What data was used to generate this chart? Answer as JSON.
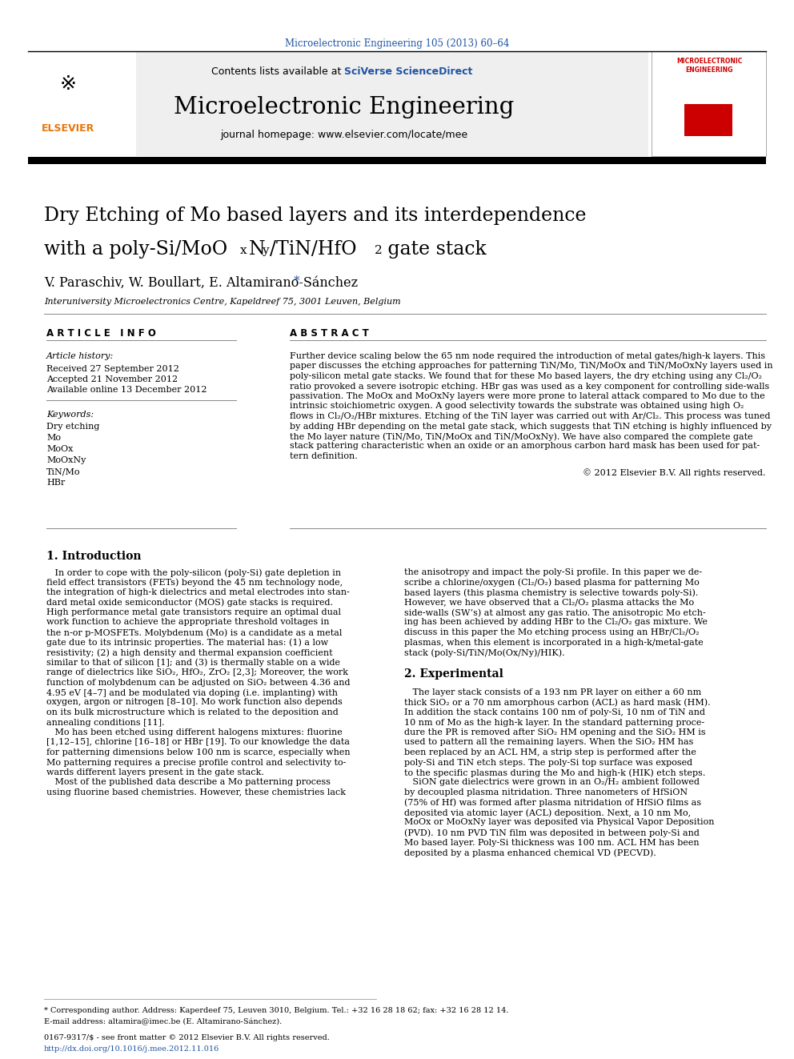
{
  "page_bg": "#ffffff",
  "header_citation": "Microelectronic Engineering 105 (2013) 60–64",
  "header_citation_color": "#2155a3",
  "journal_name": "Microelectronic Engineering",
  "journal_homepage": "journal homepage: www.elsevier.com/locate/mee",
  "contents_text": "Contents lists available at ",
  "sciverse_text": "SciVerse ScienceDirect",
  "sciverse_color": "#2155a3",
  "header_bg": "#efefef",
  "paper_title_line1": "Dry Etching of Mo based layers and its interdependence",
  "authors": "V. Paraschiv, W. Boullart, E. Altamirano-Sánchez ",
  "affiliation": "Interuniversity Microelectronics Centre, Kapeldreef 75, 3001 Leuven, Belgium",
  "article_info_header": "A R T I C L E   I N F O",
  "abstract_header": "A B S T R A C T",
  "article_history_label": "Article history:",
  "received": "Received 27 September 2012",
  "accepted": "Accepted 21 November 2012",
  "available": "Available online 13 December 2012",
  "keywords_label": "Keywords:",
  "keywords": [
    "Dry etching",
    "Mo",
    "MoOx",
    "MoOxNy",
    "TiN/Mo",
    "HBr"
  ],
  "copyright": "© 2012 Elsevier B.V. All rights reserved.",
  "intro_header": "1. Introduction",
  "experimental_header": "2. Experimental",
  "footer_text1": "* Corresponding author. Address: Kaperdeef 75, Leuven 3010, Belgium. Tel.: +32 16 28 18 62; fax: +32 16 28 12 14.",
  "footer_text2": "E-mail address: altamira@imec.be (E. Altamirano-Sánchez).",
  "footer_issn": "0167-9317/$ - see front matter © 2012 Elsevier B.V. All rights reserved.",
  "footer_doi": "http://dx.doi.org/10.1016/j.mee.2012.11.016",
  "footer_doi_color": "#2155a3",
  "elsevier_color": "#E8760A",
  "cover_title_color": "#cc0000",
  "separator_color": "#888888",
  "black": "#000000"
}
